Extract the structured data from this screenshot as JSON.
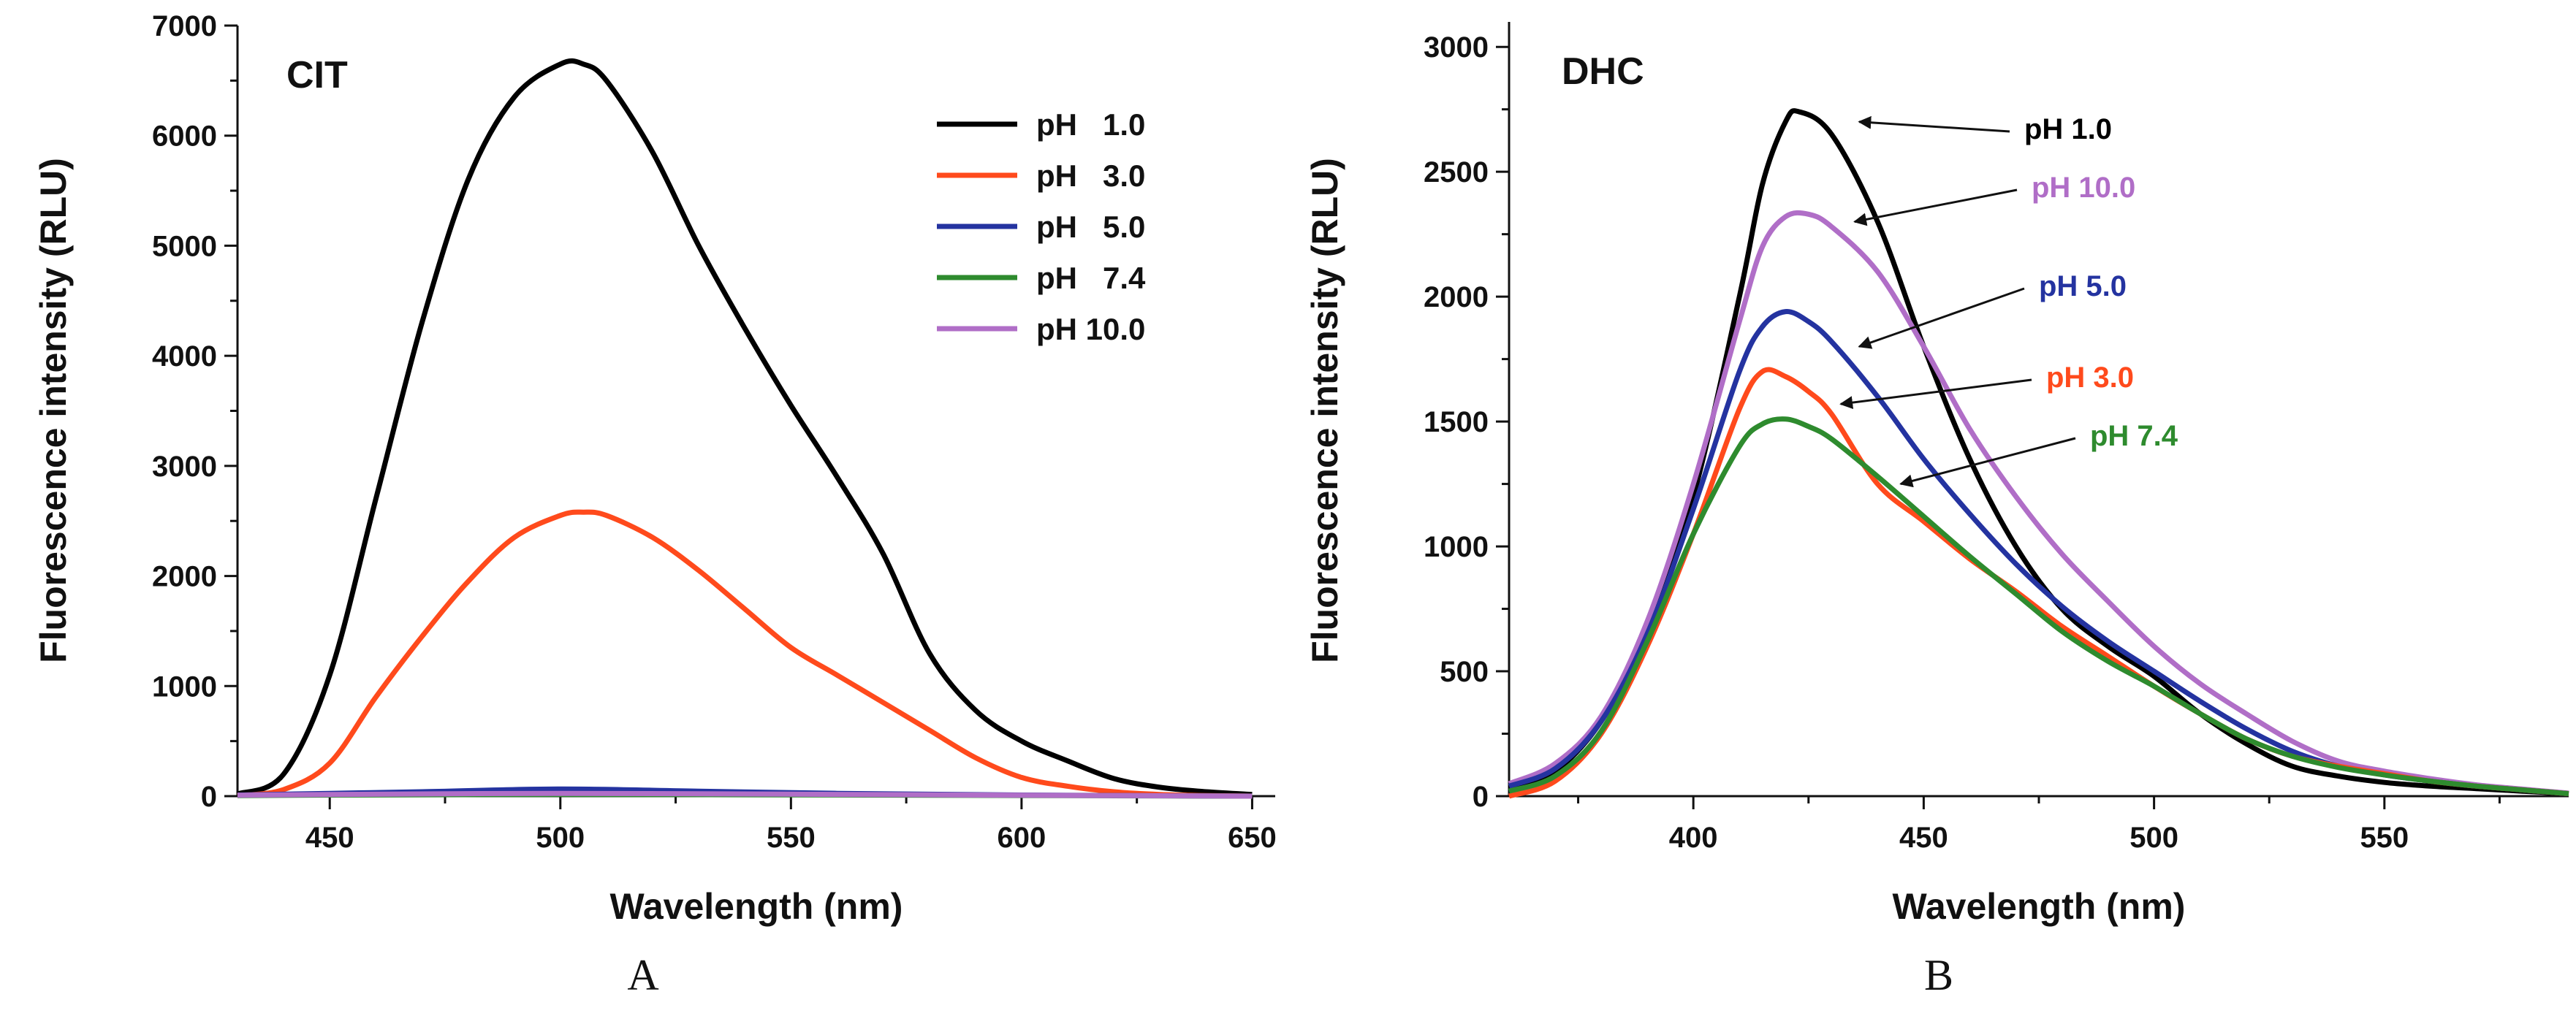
{
  "chart_data": [
    {
      "panel_label": "A",
      "type": "line",
      "title": "CIT",
      "xlabel": "Wavelength (nm)",
      "ylabel": "Fluorescence intensity (RLU)",
      "xlim": [
        430,
        655
      ],
      "ylim": [
        0,
        7000
      ],
      "xticks": [
        "450",
        "500",
        "550",
        "600",
        "650"
      ],
      "yticks": [
        "0",
        "1000",
        "2000",
        "3000",
        "4000",
        "5000",
        "6000",
        "7000"
      ],
      "legend": {
        "position": "top-right"
      },
      "series": [
        {
          "name": "pH   1.0",
          "color": "#000000",
          "x": [
            430,
            440,
            450,
            460,
            470,
            480,
            490,
            500,
            505,
            510,
            520,
            530,
            540,
            550,
            560,
            570,
            580,
            590,
            600,
            610,
            620,
            630,
            640,
            650
          ],
          "values": [
            20,
            200,
            1100,
            2700,
            4300,
            5600,
            6350,
            6650,
            6650,
            6500,
            5850,
            5000,
            4250,
            3550,
            2900,
            2200,
            1300,
            780,
            500,
            320,
            160,
            80,
            40,
            15
          ]
        },
        {
          "name": "pH   3.0",
          "color": "#ff4a1c",
          "x": [
            430,
            440,
            450,
            460,
            470,
            480,
            490,
            500,
            505,
            510,
            520,
            530,
            540,
            550,
            560,
            570,
            580,
            590,
            600,
            610,
            620,
            630,
            640,
            650
          ],
          "values": [
            5,
            60,
            300,
            900,
            1450,
            1950,
            2350,
            2550,
            2580,
            2550,
            2350,
            2050,
            1700,
            1350,
            1100,
            850,
            600,
            350,
            170,
            90,
            40,
            15,
            5,
            0
          ]
        },
        {
          "name": "pH   5.0",
          "color": "#2433a0",
          "x": [
            430,
            450,
            470,
            500,
            530,
            560,
            600,
            650
          ],
          "values": [
            10,
            25,
            40,
            65,
            45,
            25,
            10,
            0
          ]
        },
        {
          "name": "pH   7.4",
          "color": "#2e8b2e",
          "x": [
            430,
            450,
            500,
            550,
            600,
            650
          ],
          "values": [
            5,
            10,
            15,
            12,
            6,
            0
          ]
        },
        {
          "name": "pH 10.0",
          "color": "#b06ec7",
          "x": [
            430,
            450,
            500,
            550,
            600,
            650
          ],
          "values": [
            8,
            15,
            25,
            18,
            8,
            0
          ]
        }
      ]
    },
    {
      "panel_label": "B",
      "type": "line",
      "title": "DHC",
      "xlabel": "Wavelength (nm)",
      "ylabel": "Fluorescence intensity (RLU)",
      "xlim": [
        360,
        590
      ],
      "ylim": [
        0,
        3100
      ],
      "xticks": [
        "400",
        "450",
        "500",
        "550"
      ],
      "yticks": [
        "0",
        "500",
        "1000",
        "1500",
        "2000",
        "2500",
        "3000"
      ],
      "legend": {
        "position": "annotations"
      },
      "series": [
        {
          "name": "pH 1.0",
          "color": "#000000",
          "x": [
            360,
            370,
            380,
            390,
            400,
            410,
            415,
            420,
            423,
            430,
            440,
            450,
            460,
            470,
            480,
            490,
            500,
            510,
            520,
            530,
            540,
            550,
            560,
            570,
            580,
            590
          ],
          "values": [
            30,
            100,
            300,
            650,
            1200,
            2000,
            2450,
            2700,
            2740,
            2650,
            2300,
            1800,
            1350,
            1000,
            750,
            600,
            480,
            330,
            210,
            120,
            80,
            55,
            40,
            30,
            20,
            10
          ]
        },
        {
          "name": "pH 10.0",
          "color": "#b06ec7",
          "x": [
            360,
            370,
            380,
            390,
            400,
            410,
            415,
            420,
            425,
            430,
            440,
            450,
            460,
            470,
            480,
            490,
            500,
            510,
            520,
            530,
            540,
            550,
            560,
            570,
            580,
            590
          ],
          "values": [
            50,
            130,
            320,
            700,
            1250,
            1900,
            2200,
            2320,
            2330,
            2280,
            2100,
            1800,
            1470,
            1200,
            970,
            780,
            600,
            450,
            330,
            220,
            140,
            100,
            70,
            45,
            28,
            12
          ]
        },
        {
          "name": "pH 5.0",
          "color": "#2433a0",
          "x": [
            360,
            370,
            380,
            390,
            400,
            410,
            415,
            420,
            425,
            430,
            440,
            450,
            460,
            470,
            480,
            490,
            500,
            510,
            520,
            530,
            540,
            550,
            560,
            570,
            580,
            590
          ],
          "values": [
            40,
            110,
            300,
            650,
            1150,
            1700,
            1880,
            1940,
            1900,
            1820,
            1600,
            1350,
            1130,
            930,
            760,
            620,
            500,
            380,
            270,
            180,
            120,
            85,
            60,
            40,
            25,
            10
          ]
        },
        {
          "name": "pH 3.0",
          "color": "#ff4a1c",
          "x": [
            360,
            370,
            380,
            390,
            400,
            410,
            415,
            420,
            425,
            430,
            440,
            450,
            460,
            470,
            480,
            490,
            500,
            510,
            520,
            530,
            540,
            550,
            560,
            570,
            580,
            590
          ],
          "values": [
            0,
            60,
            250,
            600,
            1050,
            1550,
            1700,
            1680,
            1620,
            1530,
            1250,
            1100,
            950,
            820,
            680,
            560,
            440,
            330,
            230,
            160,
            120,
            90,
            60,
            40,
            25,
            10
          ]
        },
        {
          "name": "pH 7.4",
          "color": "#2e8b2e",
          "x": [
            360,
            370,
            380,
            390,
            400,
            410,
            415,
            420,
            425,
            430,
            440,
            450,
            460,
            470,
            480,
            490,
            500,
            510,
            520,
            530,
            540,
            550,
            560,
            570,
            580,
            590
          ],
          "values": [
            20,
            80,
            260,
            620,
            1050,
            1400,
            1490,
            1510,
            1480,
            1430,
            1280,
            1120,
            960,
            810,
            660,
            540,
            440,
            330,
            230,
            160,
            115,
            85,
            60,
            40,
            25,
            10
          ]
        }
      ],
      "annotations": [
        {
          "text": "pH 1.0",
          "color": "#000000",
          "target_x": 436,
          "target_y": 2700
        },
        {
          "text": "pH 10.0",
          "color": "#b06ec7",
          "target_x": 435,
          "target_y": 2300
        },
        {
          "text": "pH 5.0",
          "color": "#2433a0",
          "target_x": 436,
          "target_y": 1800
        },
        {
          "text": "pH 3.0",
          "color": "#ff4a1c",
          "target_x": 432,
          "target_y": 1570
        },
        {
          "text": "pH 7.4",
          "color": "#2e8b2e",
          "target_x": 445,
          "target_y": 1250
        }
      ]
    }
  ]
}
